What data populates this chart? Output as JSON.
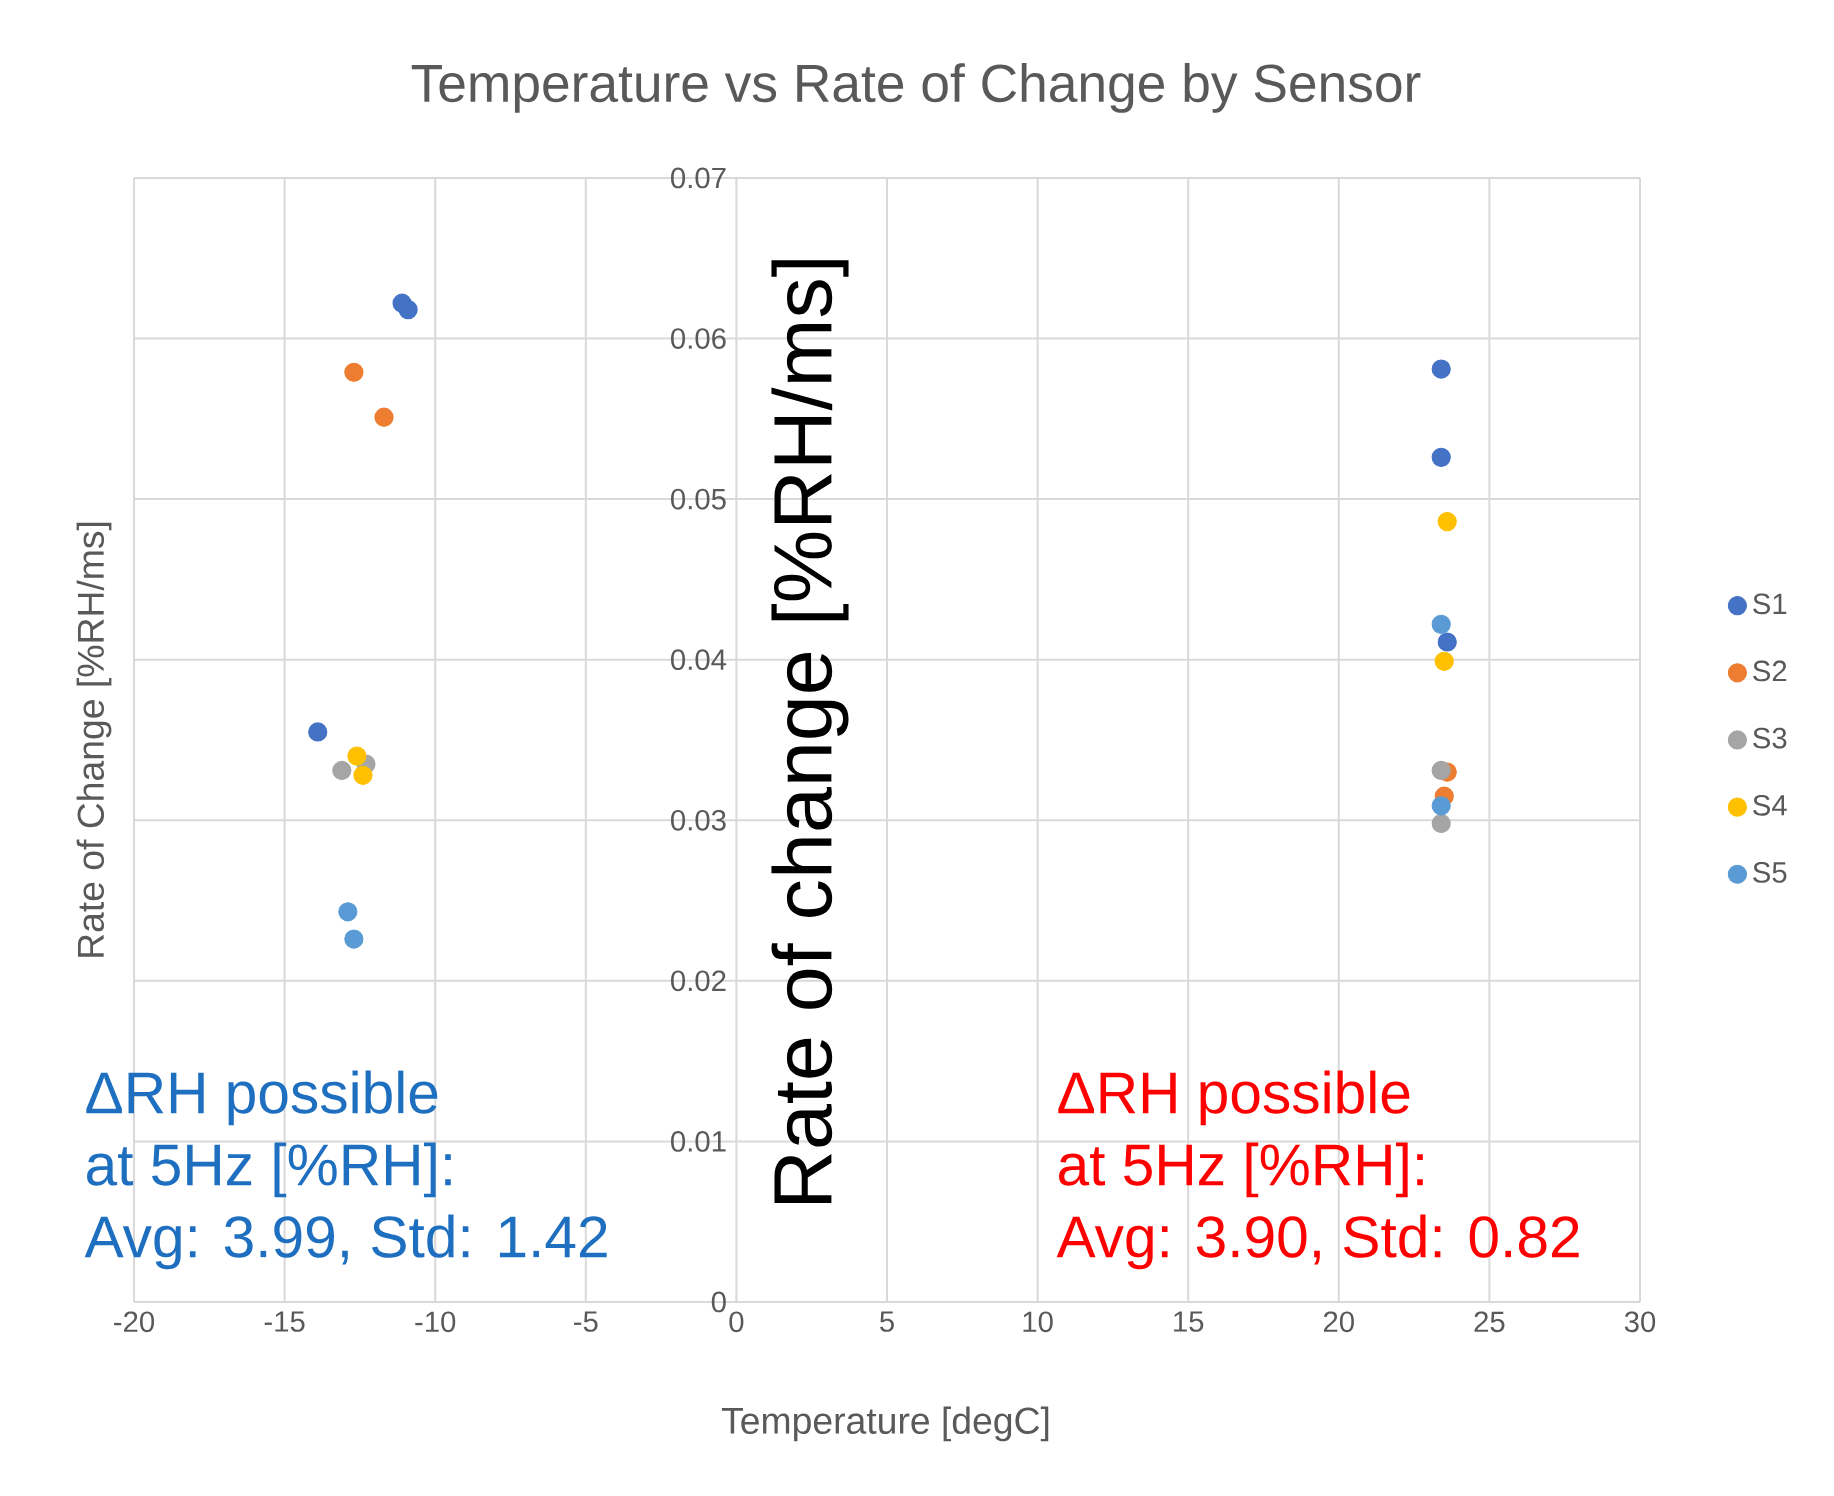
{
  "chart_data": {
    "type": "scatter",
    "title": "Temperature vs Rate of Change by Sensor",
    "xlabel": "Temperature [degC]",
    "ylabel": "Rate of Change [%RH/ms]",
    "xlim": [
      -20,
      30
    ],
    "ylim": [
      0,
      0.07
    ],
    "xticks": [
      -20,
      -15,
      -10,
      -5,
      0,
      5,
      10,
      15,
      20,
      25,
      30
    ],
    "yticks": [
      0,
      0.01,
      0.02,
      0.03,
      0.04,
      0.05,
      0.06,
      0.07
    ],
    "grid": true,
    "legend": "right",
    "marker": "circle",
    "series": [
      {
        "name": "S1",
        "color": "#4472c4",
        "x": [
          -11.1,
          -10.9,
          -13.9,
          23.4,
          23.4,
          23.6
        ],
        "values": [
          0.0622,
          0.0618,
          0.0355,
          0.0581,
          0.0526,
          0.0411
        ]
      },
      {
        "name": "S2",
        "color": "#ed7d31",
        "x": [
          -12.7,
          -11.7,
          23.6,
          23.5
        ],
        "values": [
          0.0579,
          0.0551,
          0.033,
          0.0315
        ]
      },
      {
        "name": "S3",
        "color": "#a5a5a5",
        "x": [
          -13.1,
          -12.3,
          23.4,
          23.4
        ],
        "values": [
          0.0331,
          0.0335,
          0.0331,
          0.0298
        ]
      },
      {
        "name": "S4",
        "color": "#ffc000",
        "x": [
          -12.6,
          -12.4,
          23.6,
          23.5
        ],
        "values": [
          0.034,
          0.0328,
          0.0486,
          0.0399
        ]
      },
      {
        "name": "S5",
        "color": "#5b9bd5",
        "x": [
          -12.9,
          -12.7,
          23.4,
          23.4
        ],
        "values": [
          0.0243,
          0.0226,
          0.0422,
          0.0309
        ]
      }
    ],
    "annotations": [
      "ΔRH possible",
      "at 5Hz [%RH]:",
      "Avg: 3.99, Std: 1.42",
      "Rate of change [%RH/ms]",
      "ΔRH possible",
      "at 5Hz [%RH]:",
      "Avg: 3.90, Std: 0.82"
    ]
  }
}
